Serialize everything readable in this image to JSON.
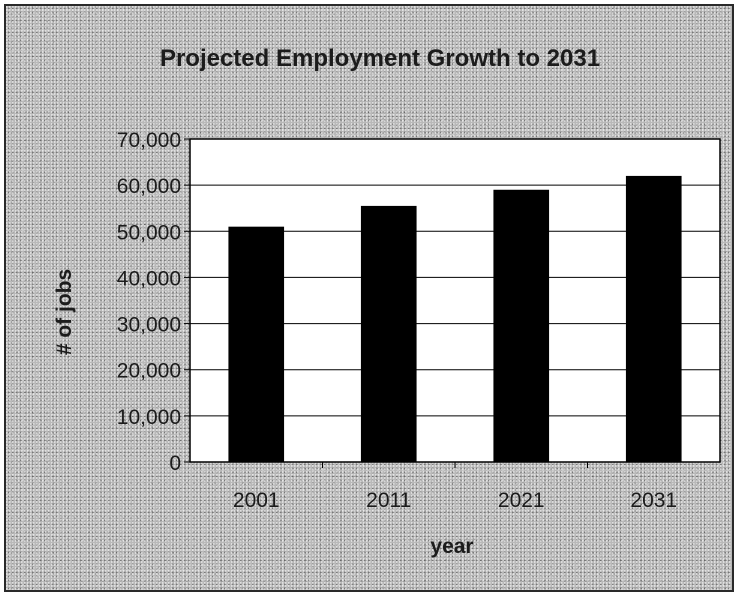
{
  "chart_data": {
    "type": "bar",
    "title": "Projected Employment Growth to 2031",
    "xlabel": "year",
    "ylabel": "# of jobs",
    "categories": [
      "2001",
      "2011",
      "2021",
      "2031"
    ],
    "values": [
      51000,
      55500,
      59000,
      62000
    ],
    "ylim": [
      0,
      70000
    ],
    "yticks": [
      "0",
      "10,000",
      "20,000",
      "30,000",
      "40,000",
      "50,000",
      "60,000",
      "70,000"
    ],
    "grid": true,
    "legend": "none",
    "colors": {
      "bar": "#000000",
      "plot_background": "#ffffff",
      "chart_background": "#b9b9b9",
      "gridline": "#000000"
    }
  }
}
